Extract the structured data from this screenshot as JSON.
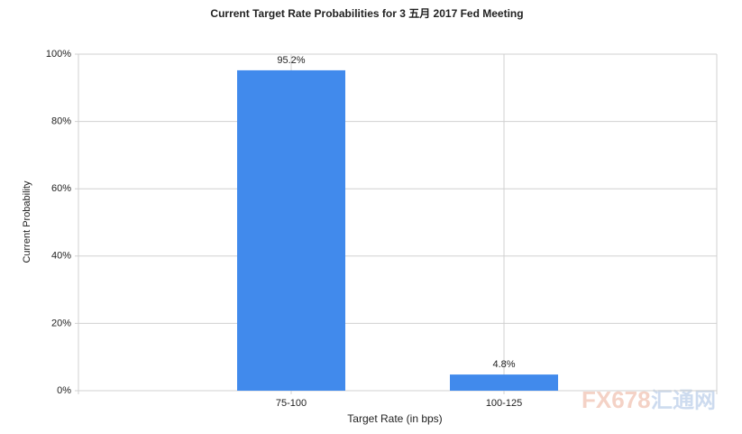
{
  "chart_data": {
    "type": "bar",
    "title": "Current Target Rate Probabilities for 3 五月 2017 Fed Meeting",
    "x_label": "Target Rate (in bps)",
    "y_label": "Current Probability",
    "categories": [
      "75-100",
      "100-125"
    ],
    "values": [
      95.2,
      4.8
    ],
    "value_labels": [
      "95.2%",
      "4.8%"
    ],
    "color": "#418aec",
    "ylim": [
      0,
      100
    ],
    "yticks": [
      {
        "value": 0,
        "label": "0%"
      },
      {
        "value": 20,
        "label": "20%"
      },
      {
        "value": 40,
        "label": "40%"
      },
      {
        "value": 60,
        "label": "60%"
      },
      {
        "value": 80,
        "label": "80%"
      },
      {
        "value": 100,
        "label": "100%"
      }
    ],
    "grid": true
  },
  "watermark": {
    "brand": "FX678",
    "name": "汇通网"
  }
}
